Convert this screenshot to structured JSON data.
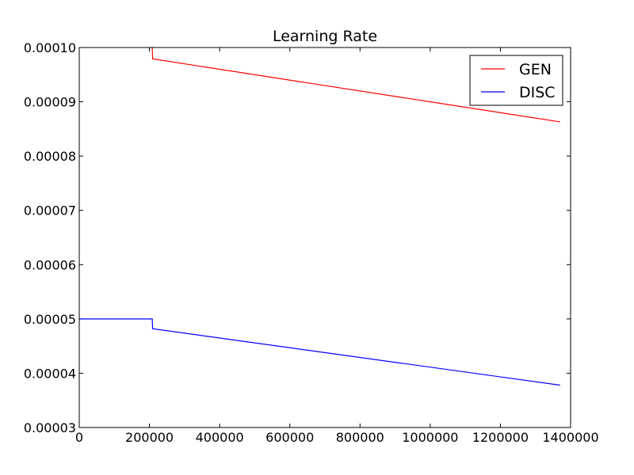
{
  "chart_data": {
    "type": "line",
    "title": "Learning Rate",
    "xlabel": "",
    "ylabel": "",
    "xlim": [
      0,
      1400000
    ],
    "ylim": [
      3e-05,
      0.0001
    ],
    "xticks": [
      0,
      200000,
      400000,
      600000,
      800000,
      1000000,
      1200000,
      1400000
    ],
    "xtick_labels": [
      "0",
      "200000",
      "400000",
      "600000",
      "800000",
      "1000000",
      "1200000",
      "1400000"
    ],
    "yticks": [
      3e-05,
      4e-05,
      5e-05,
      6e-05,
      7e-05,
      8e-05,
      9e-05,
      0.0001
    ],
    "ytick_labels": [
      "0.00003",
      "0.00004",
      "0.00005",
      "0.00006",
      "0.00007",
      "0.00008",
      "0.00009",
      "0.00010"
    ],
    "grid": false,
    "legend_position": "top-right",
    "series": [
      {
        "name": "GEN",
        "color": "#ff0000",
        "x": [
          203000,
          208000,
          209000,
          1370000
        ],
        "y": [
          0.0001,
          0.0001,
          9.79e-05,
          8.63e-05
        ]
      },
      {
        "name": "DISC",
        "color": "#0000ff",
        "x": [
          0,
          208000,
          209000,
          1370000
        ],
        "y": [
          5e-05,
          5e-05,
          4.82e-05,
          3.78e-05
        ]
      }
    ]
  }
}
